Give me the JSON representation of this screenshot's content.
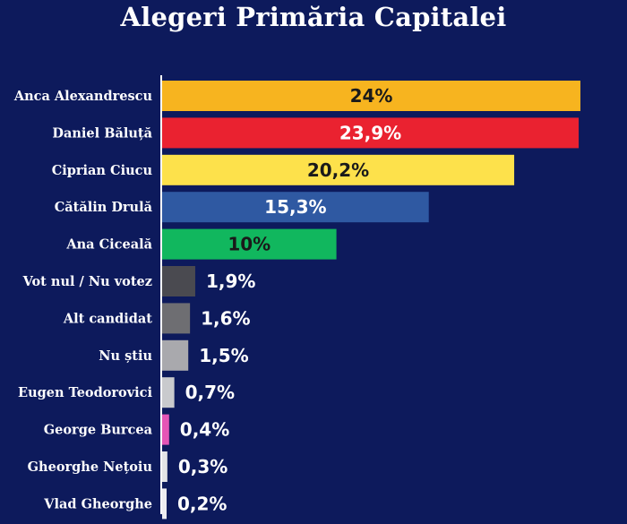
{
  "chart_data": {
    "type": "bar",
    "orientation": "horizontal",
    "title": "Alegeri Primăria Capitalei",
    "categories": [
      "Anca Alexandrescu",
      "Daniel Băluță",
      "Ciprian Ciucu",
      "Cătălin Drulă",
      "Ana Ciceală",
      "Vot nul / Nu votez",
      "Alt candidat",
      "Nu știu",
      "Eugen Teodorovici",
      "George Burcea",
      "Gheorghe Nețoiu",
      "Vlad Gheorghe"
    ],
    "values": [
      24,
      23.9,
      20.2,
      15.3,
      10,
      1.9,
      1.6,
      1.5,
      0.7,
      0.4,
      0.3,
      0.2
    ],
    "value_labels": [
      "24%",
      "23,9%",
      "20,2%",
      "15,3%",
      "10%",
      "1,9%",
      "1,6%",
      "1,5%",
      "0,7%",
      "0,4%",
      "0,3%",
      "0,2%"
    ],
    "colors": [
      "#f7b41f",
      "#ea2230",
      "#fde14b",
      "#2f59a2",
      "#11b75e",
      "#4a4a50",
      "#6e6e72",
      "#a9a9ad",
      "#c9cacd",
      "#e455b6",
      "#e2e3e6",
      "#ededf0"
    ],
    "label_colors": [
      "#1a1a1a",
      "#ffffff",
      "#1a1a1a",
      "#ffffff",
      "#1a1a1a",
      "#ffffff",
      "#ffffff",
      "#ffffff",
      "#ffffff",
      "#ffffff",
      "#ffffff",
      "#ffffff"
    ],
    "xlim": [
      0,
      24
    ],
    "grid": false,
    "legend": "none"
  }
}
